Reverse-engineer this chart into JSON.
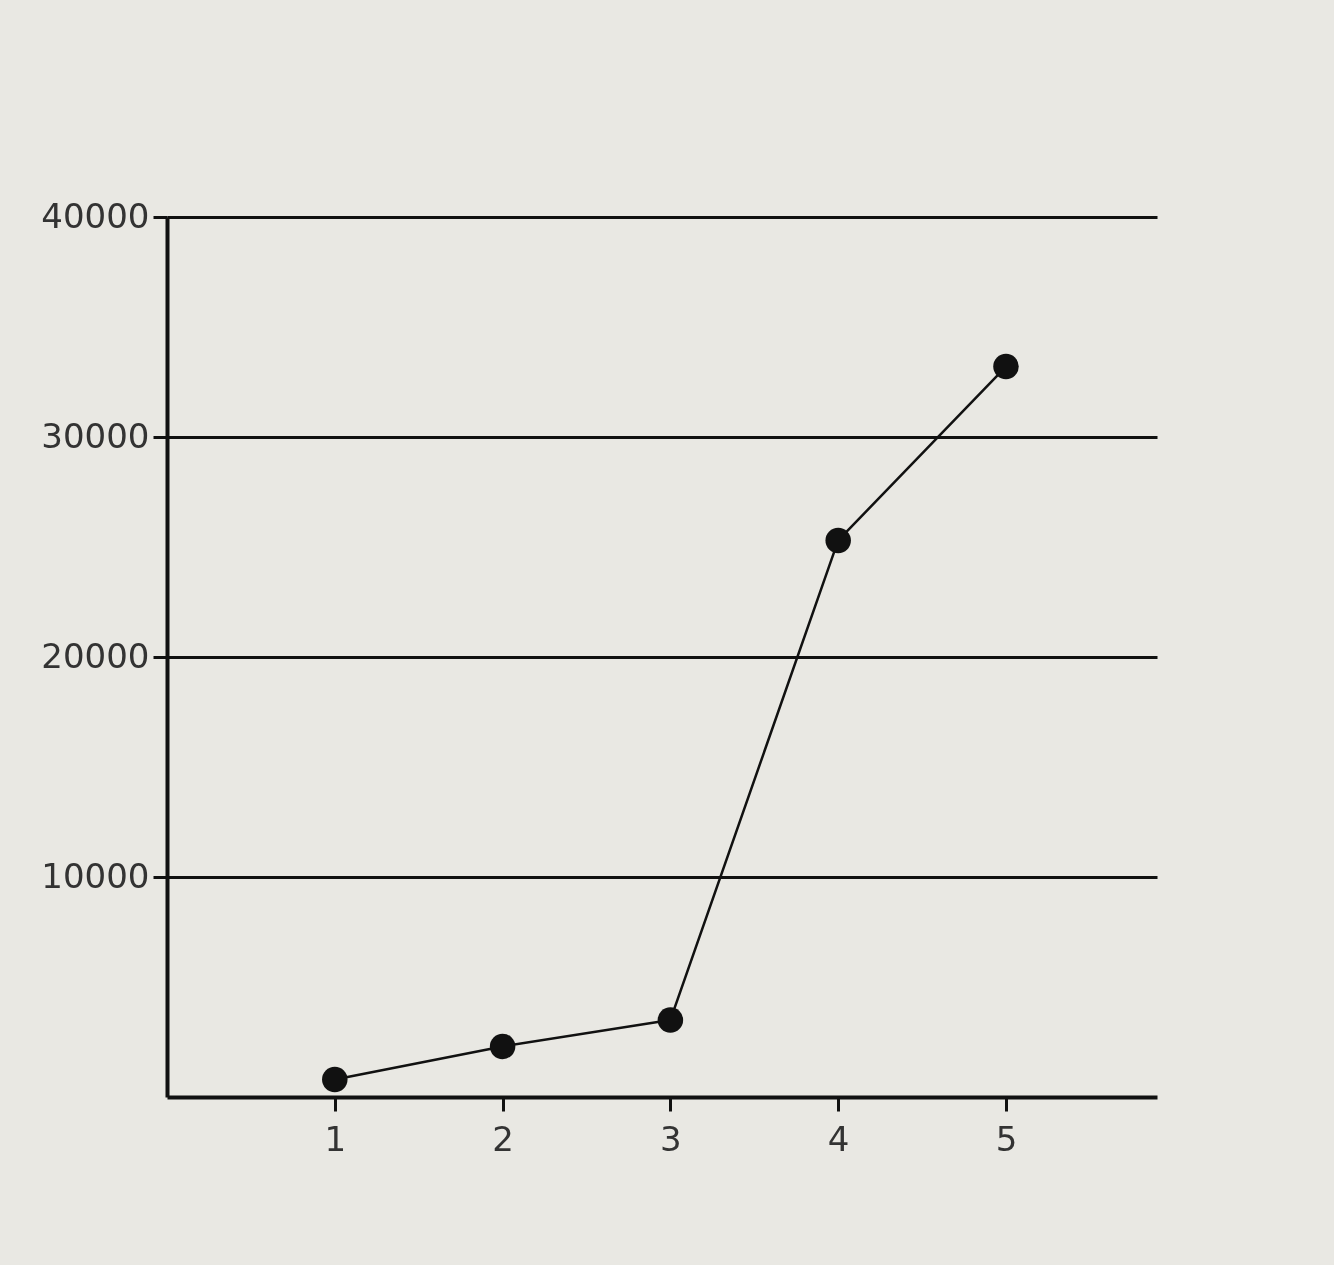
{
  "chart_data": {
    "type": "line",
    "x": [
      1,
      2,
      3,
      4,
      5
    ],
    "values": [
      800,
      2300,
      3500,
      25300,
      33200
    ],
    "color": "#111111",
    "xlim": [
      0,
      5.9
    ],
    "xticks": [
      1,
      2,
      3,
      4,
      5
    ],
    "ylim": [
      0,
      40000
    ],
    "yticks": [
      10000,
      20000,
      30000,
      40000
    ],
    "grid": "y",
    "marker": "circle",
    "line_style": "solid"
  }
}
